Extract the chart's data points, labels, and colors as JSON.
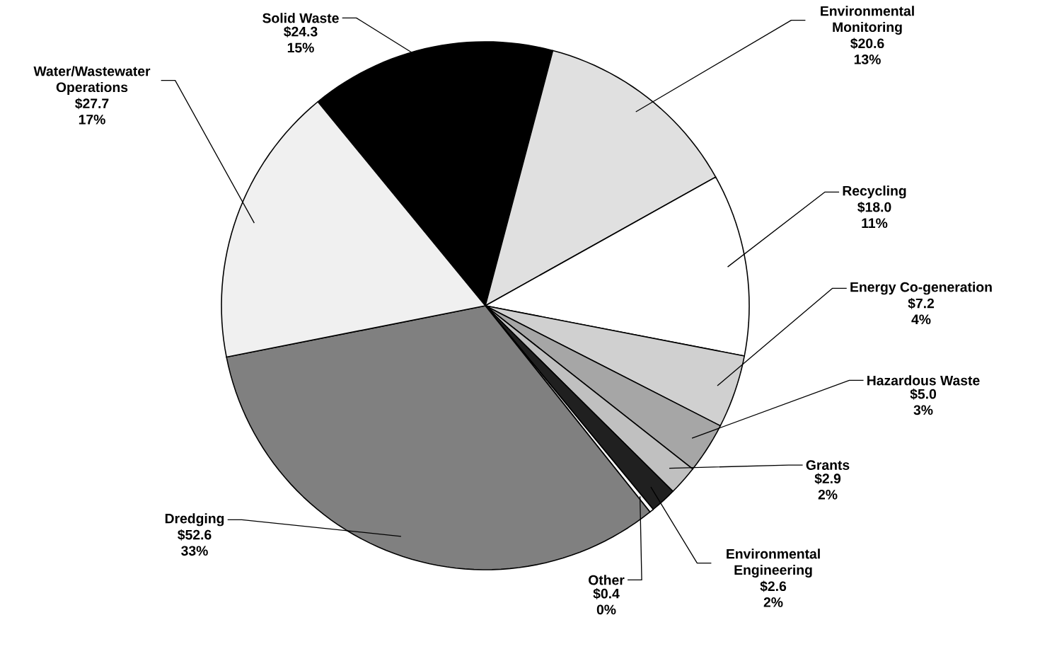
{
  "chart_data": {
    "type": "pie",
    "categories": [
      "Solid Waste",
      "Environmental Monitoring",
      "Recycling",
      "Energy Co-generation",
      "Hazardous Waste",
      "Grants",
      "Environmental Engineering",
      "Other",
      "Dredging",
      "Water/Wastewater Operations"
    ],
    "values": [
      24.3,
      20.6,
      18.0,
      7.2,
      5.0,
      2.9,
      2.6,
      0.4,
      52.6,
      27.7
    ],
    "colors": [
      "#000000",
      "#e0e0e0",
      "#ffffff",
      "#d0d0d0",
      "#a6a6a6",
      "#c0c0c0",
      "#202020",
      "#ffffff",
      "#808080",
      "#f0f0f0"
    ],
    "value_labels": [
      "$24.3 15%",
      "$20.6 13%",
      "$18.0 11%",
      "$7.2 4%",
      "$5.0 3%",
      "$2.9 2%",
      "$2.6 2%",
      "$0.4 0%",
      "$52.6 33%",
      "$27.7 17%"
    ]
  }
}
